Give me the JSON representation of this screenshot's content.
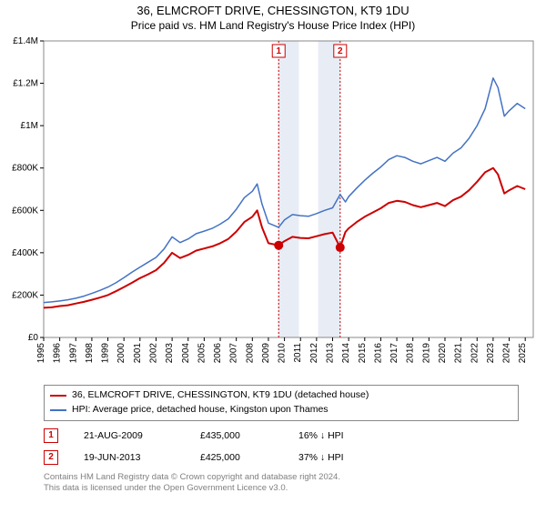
{
  "header": {
    "title": "36, ELMCROFT DRIVE, CHESSINGTON, KT9 1DU",
    "subtitle": "Price paid vs. HM Land Registry's House Price Index (HPI)"
  },
  "chart": {
    "type": "line",
    "background_color": "#ffffff",
    "grid_color": "#888888",
    "axis_color": "#000000",
    "tick_fontsize": 10,
    "xlim": [
      1995,
      2025.5
    ],
    "ylim": [
      0,
      1400000
    ],
    "ytick_step": 200000,
    "ytick_labels": [
      "£0",
      "£200K",
      "£400K",
      "£600K",
      "£800K",
      "£1M",
      "£1.2M",
      "£1.4M"
    ],
    "xtick_step": 1,
    "xtick_labels": [
      "1995",
      "1996",
      "1997",
      "1998",
      "1999",
      "2000",
      "2001",
      "2002",
      "2003",
      "2004",
      "2005",
      "2006",
      "2007",
      "2008",
      "2009",
      "2010",
      "2011",
      "2012",
      "2013",
      "2014",
      "2015",
      "2016",
      "2017",
      "2018",
      "2019",
      "2020",
      "2021",
      "2022",
      "2023",
      "2024",
      "2025"
    ],
    "shaded_ranges": [
      {
        "x0": 2009.6,
        "x1": 2010.9,
        "fill": "#e8edf5"
      },
      {
        "x0": 2012.1,
        "x1": 2013.5,
        "fill": "#e8edf5"
      }
    ],
    "sale_refs": [
      {
        "x": 2009.64,
        "label": "1",
        "color": "#cc0000",
        "dash": "2,2"
      },
      {
        "x": 2013.47,
        "label": "2",
        "color": "#cc0000",
        "dash": "2,2"
      }
    ],
    "series": [
      {
        "name": "property",
        "color": "#cc0000",
        "width": 2,
        "points": [
          [
            1995,
            140000
          ],
          [
            1995.5,
            142000
          ],
          [
            1996,
            148000
          ],
          [
            1996.5,
            152000
          ],
          [
            1997,
            160000
          ],
          [
            1997.5,
            168000
          ],
          [
            1998,
            178000
          ],
          [
            1998.5,
            188000
          ],
          [
            1999,
            200000
          ],
          [
            1999.5,
            218000
          ],
          [
            2000,
            238000
          ],
          [
            2000.5,
            258000
          ],
          [
            2001,
            280000
          ],
          [
            2001.5,
            298000
          ],
          [
            2002,
            318000
          ],
          [
            2002.5,
            352000
          ],
          [
            2003,
            400000
          ],
          [
            2003.5,
            375000
          ],
          [
            2004,
            390000
          ],
          [
            2004.5,
            410000
          ],
          [
            2005,
            420000
          ],
          [
            2005.5,
            430000
          ],
          [
            2006,
            445000
          ],
          [
            2006.5,
            465000
          ],
          [
            2007,
            500000
          ],
          [
            2007.5,
            545000
          ],
          [
            2008,
            570000
          ],
          [
            2008.3,
            600000
          ],
          [
            2008.6,
            520000
          ],
          [
            2009,
            445000
          ],
          [
            2009.64,
            435000
          ],
          [
            2010,
            455000
          ],
          [
            2010.5,
            475000
          ],
          [
            2011,
            470000
          ],
          [
            2011.5,
            468000
          ],
          [
            2012,
            478000
          ],
          [
            2012.5,
            488000
          ],
          [
            2013,
            495000
          ],
          [
            2013.47,
            425000
          ],
          [
            2013.8,
            498000
          ],
          [
            2014,
            515000
          ],
          [
            2014.5,
            545000
          ],
          [
            2015,
            570000
          ],
          [
            2015.5,
            590000
          ],
          [
            2016,
            610000
          ],
          [
            2016.5,
            635000
          ],
          [
            2017,
            645000
          ],
          [
            2017.5,
            640000
          ],
          [
            2018,
            625000
          ],
          [
            2018.5,
            615000
          ],
          [
            2019,
            625000
          ],
          [
            2019.5,
            635000
          ],
          [
            2020,
            620000
          ],
          [
            2020.5,
            648000
          ],
          [
            2021,
            665000
          ],
          [
            2021.5,
            695000
          ],
          [
            2022,
            735000
          ],
          [
            2022.5,
            780000
          ],
          [
            2023,
            800000
          ],
          [
            2023.3,
            770000
          ],
          [
            2023.7,
            680000
          ],
          [
            2024,
            695000
          ],
          [
            2024.5,
            715000
          ],
          [
            2025,
            700000
          ]
        ],
        "markers": [
          {
            "x": 2009.64,
            "y": 435000
          },
          {
            "x": 2013.47,
            "y": 425000
          }
        ],
        "marker_radius": 5,
        "marker_fill": "#cc0000"
      },
      {
        "name": "hpi",
        "color": "#4472c4",
        "width": 1.5,
        "points": [
          [
            1995,
            165000
          ],
          [
            1995.5,
            168000
          ],
          [
            1996,
            172000
          ],
          [
            1996.5,
            178000
          ],
          [
            1997,
            185000
          ],
          [
            1997.5,
            195000
          ],
          [
            1998,
            208000
          ],
          [
            1998.5,
            222000
          ],
          [
            1999,
            238000
          ],
          [
            1999.5,
            258000
          ],
          [
            2000,
            282000
          ],
          [
            2000.5,
            308000
          ],
          [
            2001,
            332000
          ],
          [
            2001.5,
            355000
          ],
          [
            2002,
            378000
          ],
          [
            2002.5,
            418000
          ],
          [
            2003,
            475000
          ],
          [
            2003.5,
            448000
          ],
          [
            2004,
            465000
          ],
          [
            2004.5,
            490000
          ],
          [
            2005,
            502000
          ],
          [
            2005.5,
            515000
          ],
          [
            2006,
            535000
          ],
          [
            2006.5,
            560000
          ],
          [
            2007,
            605000
          ],
          [
            2007.5,
            660000
          ],
          [
            2008,
            690000
          ],
          [
            2008.3,
            725000
          ],
          [
            2008.6,
            630000
          ],
          [
            2009,
            540000
          ],
          [
            2009.64,
            520000
          ],
          [
            2010,
            555000
          ],
          [
            2010.5,
            580000
          ],
          [
            2011,
            575000
          ],
          [
            2011.5,
            572000
          ],
          [
            2012,
            585000
          ],
          [
            2012.5,
            600000
          ],
          [
            2013,
            612000
          ],
          [
            2013.47,
            675000
          ],
          [
            2013.8,
            640000
          ],
          [
            2014,
            665000
          ],
          [
            2014.5,
            705000
          ],
          [
            2015,
            742000
          ],
          [
            2015.5,
            775000
          ],
          [
            2016,
            805000
          ],
          [
            2016.5,
            840000
          ],
          [
            2017,
            858000
          ],
          [
            2017.5,
            850000
          ],
          [
            2018,
            832000
          ],
          [
            2018.5,
            820000
          ],
          [
            2019,
            835000
          ],
          [
            2019.5,
            850000
          ],
          [
            2020,
            832000
          ],
          [
            2020.5,
            870000
          ],
          [
            2021,
            895000
          ],
          [
            2021.5,
            940000
          ],
          [
            2022,
            1000000
          ],
          [
            2022.5,
            1080000
          ],
          [
            2023,
            1225000
          ],
          [
            2023.3,
            1180000
          ],
          [
            2023.7,
            1045000
          ],
          [
            2024,
            1070000
          ],
          [
            2024.5,
            1105000
          ],
          [
            2025,
            1080000
          ]
        ]
      }
    ]
  },
  "legend": {
    "items": [
      {
        "color": "#cc0000",
        "label": "36, ELMCROFT DRIVE, CHESSINGTON, KT9 1DU (detached house)"
      },
      {
        "color": "#4472c4",
        "label": "HPI: Average price, detached house, Kingston upon Thames"
      }
    ]
  },
  "sales": [
    {
      "n": "1",
      "date": "21-AUG-2009",
      "price": "£435,000",
      "delta": "16% ↓ HPI",
      "color": "#cc0000"
    },
    {
      "n": "2",
      "date": "19-JUN-2013",
      "price": "£425,000",
      "delta": "37% ↓ HPI",
      "color": "#cc0000"
    }
  ],
  "footer": {
    "line1": "Contains HM Land Registry data © Crown copyright and database right 2024.",
    "line2": "This data is licensed under the Open Government Licence v3.0."
  }
}
